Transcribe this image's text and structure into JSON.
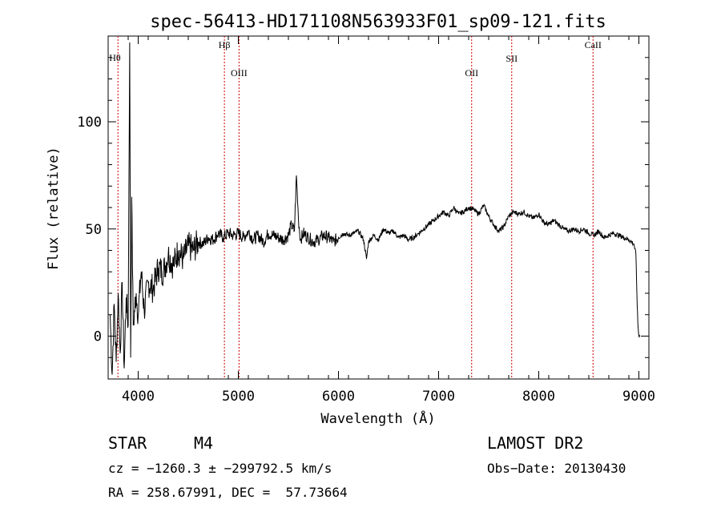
{
  "chart_data": {
    "type": "line",
    "title": "spec-56413-HD171108N563933F01_sp09-121.fits",
    "xlabel": "Wavelength (Å)",
    "ylabel": "Flux (relative)",
    "xlim": [
      3700,
      9100
    ],
    "ylim": [
      -20,
      140
    ],
    "x_ticks": [
      4000,
      5000,
      6000,
      7000,
      8000,
      9000
    ],
    "y_ticks": [
      0,
      50,
      100
    ],
    "grid": false,
    "lines": [
      {
        "label": "Hθ",
        "wavelength": 3798
      },
      {
        "label": "Hβ",
        "wavelength": 4861
      },
      {
        "label": "OIII",
        "wavelength": 5007
      },
      {
        "label": "OII",
        "wavelength": 7330
      },
      {
        "label": "SII",
        "wavelength": 7730
      },
      {
        "label": "CaII",
        "wavelength": 8542
      }
    ],
    "line_color": "#cc0000",
    "series": [
      {
        "x": [
          3720,
          3740,
          3760,
          3780,
          3800,
          3820,
          3840,
          3860,
          3880,
          3900,
          3915,
          3925,
          3935,
          3950,
          3980,
          4000,
          4030,
          4060,
          4100,
          4150,
          4200,
          4250,
          4300,
          4350,
          4400,
          4450,
          4500,
          4550,
          4600,
          4650,
          4700,
          4750,
          4800,
          4850,
          4900,
          4950,
          5000,
          5050,
          5100,
          5150,
          5200,
          5250,
          5300,
          5350,
          5400,
          5450,
          5500,
          5530,
          5560,
          5580,
          5600,
          5620,
          5650,
          5700,
          5750,
          5800,
          5850,
          5900,
          5950,
          6000,
          6050,
          6100,
          6150,
          6200,
          6250,
          6280,
          6300,
          6350,
          6400,
          6450,
          6500,
          6550,
          6600,
          6650,
          6700,
          6750,
          6800,
          6850,
          6900,
          6950,
          7000,
          7050,
          7100,
          7150,
          7200,
          7250,
          7300,
          7350,
          7400,
          7450,
          7500,
          7550,
          7600,
          7650,
          7700,
          7750,
          7800,
          7850,
          7900,
          7950,
          8000,
          8050,
          8100,
          8150,
          8200,
          8250,
          8300,
          8350,
          8400,
          8450,
          8500,
          8550,
          8600,
          8650,
          8700,
          8750,
          8800,
          8850,
          8900,
          8950,
          8970,
          8980,
          8990,
          9000,
          9010
        ],
        "y": [
          10,
          -18,
          15,
          -12,
          20,
          -8,
          25,
          -15,
          18,
          5,
          137,
          -10,
          65,
          5,
          20,
          10,
          30,
          12,
          25,
          22,
          32,
          30,
          38,
          33,
          40,
          36,
          42,
          40,
          44,
          43,
          46,
          45,
          48,
          46,
          48,
          47,
          48,
          46,
          49,
          45,
          47,
          44,
          48,
          47,
          46,
          45,
          47,
          52,
          49,
          75,
          55,
          45,
          48,
          46,
          44,
          45,
          47,
          46,
          44,
          46,
          48,
          47,
          48,
          49,
          45,
          36,
          44,
          47,
          45,
          50,
          48,
          49,
          46,
          47,
          45,
          46,
          48,
          50,
          52,
          54,
          56,
          58,
          56,
          60,
          57,
          58,
          60,
          59,
          57,
          61,
          56,
          52,
          49,
          51,
          56,
          58,
          57,
          58,
          56,
          55,
          57,
          53,
          52,
          54,
          52,
          50,
          49,
          50,
          49,
          50,
          48,
          47,
          49,
          46,
          47,
          48,
          47,
          46,
          45,
          43,
          38,
          20,
          5,
          0,
          0
        ]
      }
    ]
  },
  "info": {
    "class_label": "STAR",
    "subclass": "M4",
    "survey": "LAMOST DR2",
    "cz_line": "cz = −1260.3 ± −299792.5 km/s",
    "obs_date": "Obs−Date: 20130430",
    "radec_line": "RA = 258.67991, DEC =  57.73664"
  }
}
